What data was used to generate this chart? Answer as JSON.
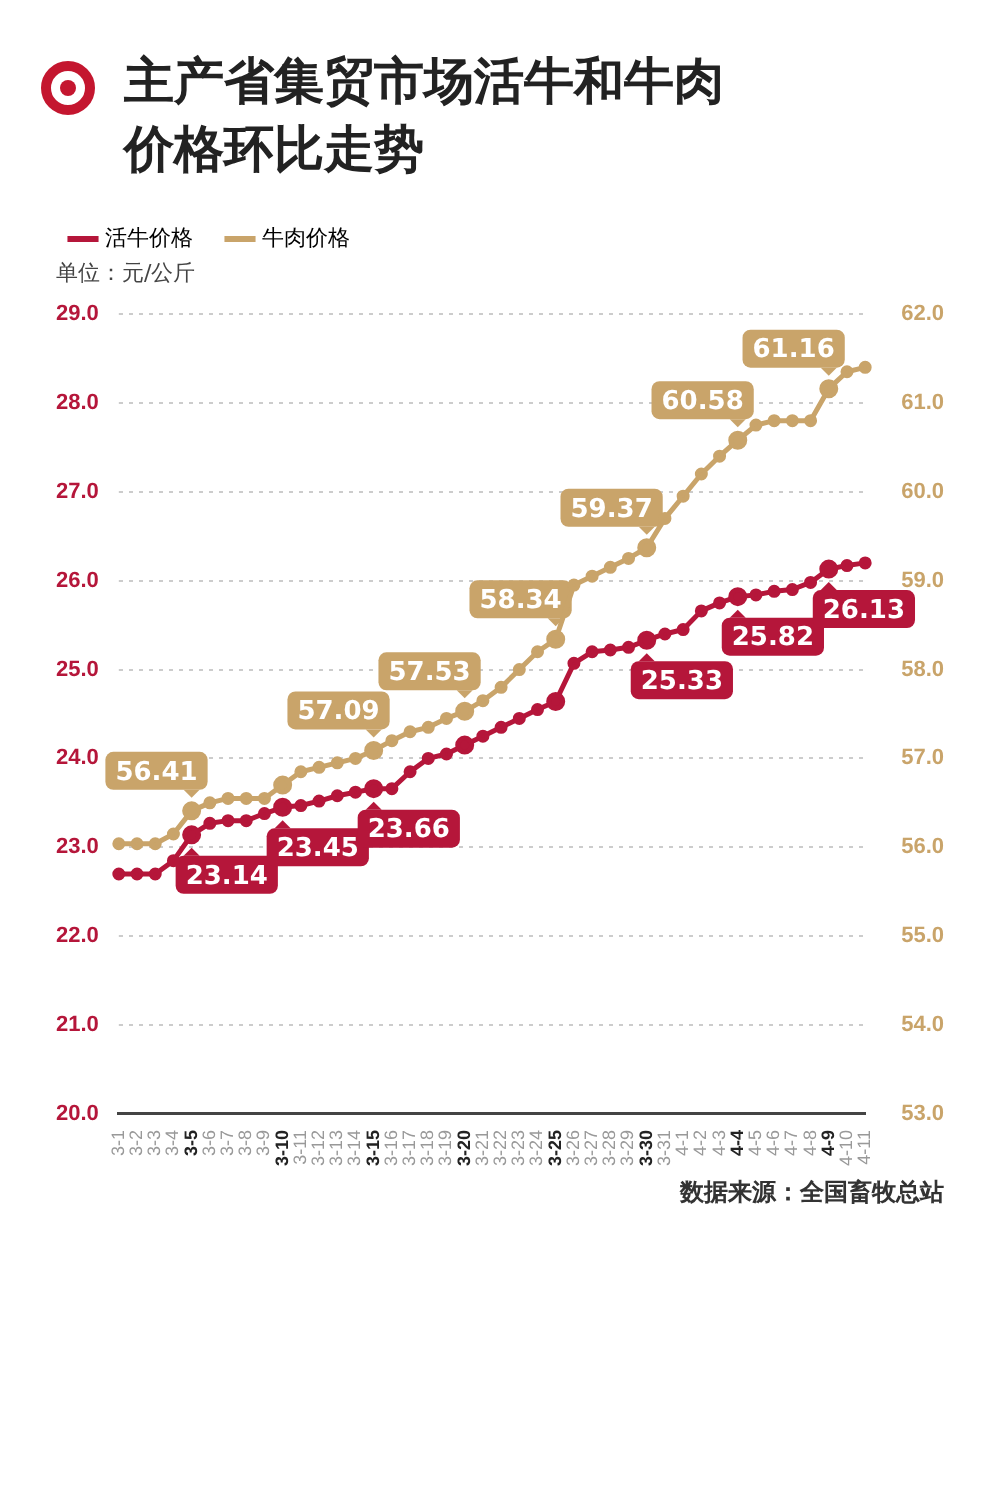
{
  "chart_data": {
    "type": "line",
    "title": "主产省集贸市场活牛和牛肉价格环比走势",
    "ylabel": "单位：元/公斤",
    "annotations": [
      "数据来源：全国畜牧总站"
    ],
    "categories": [
      "3-1",
      "3-2",
      "3-3",
      "3-4",
      "3-5",
      "3-6",
      "3-7",
      "3-8",
      "3-9",
      "3-10",
      "3-11",
      "3-12",
      "3-13",
      "3-14",
      "3-15",
      "3-16",
      "3-17",
      "3-18",
      "3-19",
      "3-20",
      "3-21",
      "3-22",
      "3-23",
      "3-24",
      "3-25",
      "3-26",
      "3-27",
      "3-28",
      "3-29",
      "3-30",
      "3-31",
      "4-1",
      "4-2",
      "4-3",
      "4-4",
      "4-5",
      "4-6",
      "4-7",
      "4-8",
      "4-9",
      "4-10",
      "4-11"
    ],
    "series": [
      {
        "name": "活牛价格",
        "color": "#b5163a",
        "values": [
          22.7,
          22.7,
          22.7,
          22.85,
          23.14,
          23.27,
          23.3,
          23.3,
          23.38,
          23.45,
          23.47,
          23.52,
          23.58,
          23.62,
          23.66,
          23.66,
          23.85,
          24.0,
          24.05,
          24.15,
          24.25,
          24.35,
          24.45,
          24.55,
          24.64,
          25.07,
          25.2,
          25.22,
          25.25,
          25.33,
          25.4,
          25.45,
          25.66,
          25.75,
          25.82,
          25.84,
          25.88,
          25.9,
          25.98,
          26.13,
          26.17,
          26.2
        ],
        "value_labels": [
          null,
          null,
          null,
          null,
          "23.14",
          null,
          null,
          null,
          null,
          "23.45",
          null,
          null,
          null,
          null,
          "23.66",
          null,
          null,
          null,
          null,
          null,
          null,
          null,
          null,
          null,
          null,
          null,
          null,
          null,
          null,
          "25.33",
          null,
          null,
          null,
          null,
          "25.82",
          null,
          null,
          null,
          null,
          "26.13",
          null,
          null
        ]
      },
      {
        "name": "牛肉价格",
        "color": "#c9a46a",
        "axis": "y2",
        "values": [
          56.04,
          56.04,
          56.04,
          56.15,
          56.41,
          56.5,
          56.55,
          56.55,
          56.55,
          56.7,
          56.85,
          56.9,
          56.95,
          57.0,
          57.09,
          57.2,
          57.3,
          57.35,
          57.45,
          57.53,
          57.65,
          57.8,
          58.0,
          58.2,
          58.34,
          58.95,
          59.05,
          59.15,
          59.25,
          59.37,
          59.7,
          59.95,
          60.2,
          60.4,
          60.58,
          60.75,
          60.8,
          60.8,
          60.8,
          61.16,
          61.35,
          61.4
        ],
        "value_labels": [
          null,
          null,
          null,
          null,
          "56.41",
          null,
          null,
          null,
          null,
          null,
          null,
          null,
          null,
          null,
          "57.09",
          null,
          null,
          null,
          null,
          "57.53",
          null,
          null,
          null,
          null,
          "58.34",
          null,
          null,
          null,
          null,
          "59.37",
          null,
          null,
          null,
          null,
          "60.58",
          null,
          null,
          null,
          null,
          "61.16",
          null,
          null
        ]
      }
    ],
    "ylim": [
      20,
      29
    ],
    "yticks": [
      {
        "value": 20,
        "label": "20.0"
      },
      {
        "value": 21,
        "label": "21.0"
      },
      {
        "value": 22,
        "label": "22.0"
      },
      {
        "value": 23,
        "label": "23.0"
      },
      {
        "value": 24,
        "label": "24.0"
      },
      {
        "value": 25,
        "label": "25.0"
      },
      {
        "value": 26,
        "label": "26.0"
      },
      {
        "value": 27,
        "label": "27.0"
      },
      {
        "value": 28,
        "label": "28.0"
      },
      {
        "value": 29,
        "label": "29.0"
      }
    ],
    "y2lim": [
      53,
      62
    ],
    "y2ticks": [
      {
        "value": 53,
        "label": "53.0"
      },
      {
        "value": 54,
        "label": "54.0"
      },
      {
        "value": 55,
        "label": "55.0"
      },
      {
        "value": 56,
        "label": "56.0"
      },
      {
        "value": 57,
        "label": "57.0"
      },
      {
        "value": 58,
        "label": "58.0"
      },
      {
        "value": 59,
        "label": "59.0"
      },
      {
        "value": 60,
        "label": "60.0"
      },
      {
        "value": 61,
        "label": "61.0"
      },
      {
        "value": 62,
        "label": "62.0"
      }
    ],
    "grid": "y",
    "legend": "top left",
    "marker": "circle",
    "line_style": "solid"
  }
}
